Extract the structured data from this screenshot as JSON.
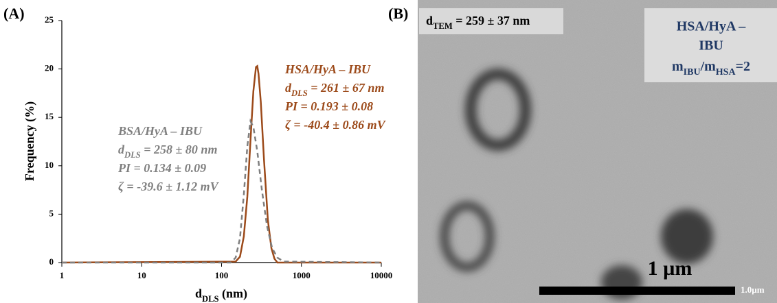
{
  "panel_label": "(A)",
  "chart_data": {
    "type": "line",
    "log_x": true,
    "xlabel": [
      "d",
      "DLS",
      " (nm)"
    ],
    "ylabel": "Frequency (%)",
    "xlim": [
      1,
      10000
    ],
    "xticks": [
      1,
      10,
      100,
      1000,
      10000
    ],
    "ylim": [
      0,
      25
    ],
    "yticks": [
      0,
      5,
      10,
      15,
      20,
      25
    ],
    "series": [
      {
        "name": "HSA/HyA – IBU",
        "color": "#9c4a1a",
        "dashed": false,
        "x": [
          1,
          150,
          170,
          190,
          210,
          230,
          250,
          270,
          280,
          290,
          310,
          340,
          380,
          420,
          460,
          500,
          10000
        ],
        "values": [
          0,
          0.1,
          0.6,
          2.7,
          6.8,
          12.6,
          17.7,
          20.2,
          20.3,
          19.5,
          16.6,
          10.6,
          4.4,
          1.5,
          0.4,
          0,
          0
        ],
        "annotation": [
          [
            "d",
            "DLS",
            " = 261 ± 67 nm"
          ],
          "PI = 0.193 ± 0.08",
          "ζ = -40.4 ± 0.86 mV"
        ]
      },
      {
        "name": "BSA/HyA – IBU",
        "color": "#7f7f7f",
        "dashed": true,
        "x": [
          1,
          130,
          150,
          170,
          190,
          210,
          230,
          250,
          280,
          320,
          370,
          430,
          500,
          600,
          10000
        ],
        "values": [
          0,
          0,
          0.5,
          2.5,
          7,
          12,
          14.6,
          14,
          11.5,
          7.5,
          3.8,
          1.5,
          0.5,
          0.1,
          0
        ],
        "annotation": [
          [
            "d",
            "DLS",
            " = 258 ± 80 nm"
          ],
          "PI = 0.134 ± 0.09",
          "ζ = -39.6 ± 1.12 mV"
        ]
      }
    ]
  },
  "panel_b": {
    "label": "(B)",
    "d_tem": [
      "d",
      "TEM",
      " = 259 ± 37 nm"
    ],
    "sample": [
      "HSA/HyA –",
      "IBU"
    ],
    "ratio": [
      "m",
      "IBU",
      "/m",
      "HSA",
      "=2"
    ],
    "scale_label": "1 µm",
    "scale_caption": "1.0µm"
  }
}
